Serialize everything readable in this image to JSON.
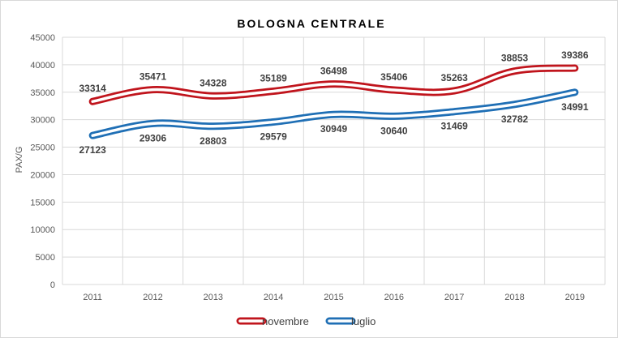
{
  "chart_data": {
    "type": "line",
    "title": "BOLOGNA CENTRALE",
    "xlabel": "",
    "ylabel": "PAX/G",
    "categories": [
      "2011",
      "2012",
      "2013",
      "2014",
      "2015",
      "2016",
      "2017",
      "2018",
      "2019"
    ],
    "ylim": [
      0,
      45000
    ],
    "yticks": [
      0,
      5000,
      10000,
      15000,
      20000,
      25000,
      30000,
      35000,
      40000,
      45000
    ],
    "grid": true,
    "legend_position": "bottom",
    "series": [
      {
        "name": "novembre",
        "color": "#c0141c",
        "values": [
          33314,
          35471,
          34328,
          35189,
          36498,
          35406,
          35263,
          38853,
          39386
        ],
        "label_position": "above"
      },
      {
        "name": "luglio",
        "color": "#1f6fb5",
        "values": [
          27123,
          29306,
          28803,
          29579,
          30949,
          30640,
          31469,
          32782,
          34991
        ],
        "label_position": "below"
      }
    ]
  }
}
